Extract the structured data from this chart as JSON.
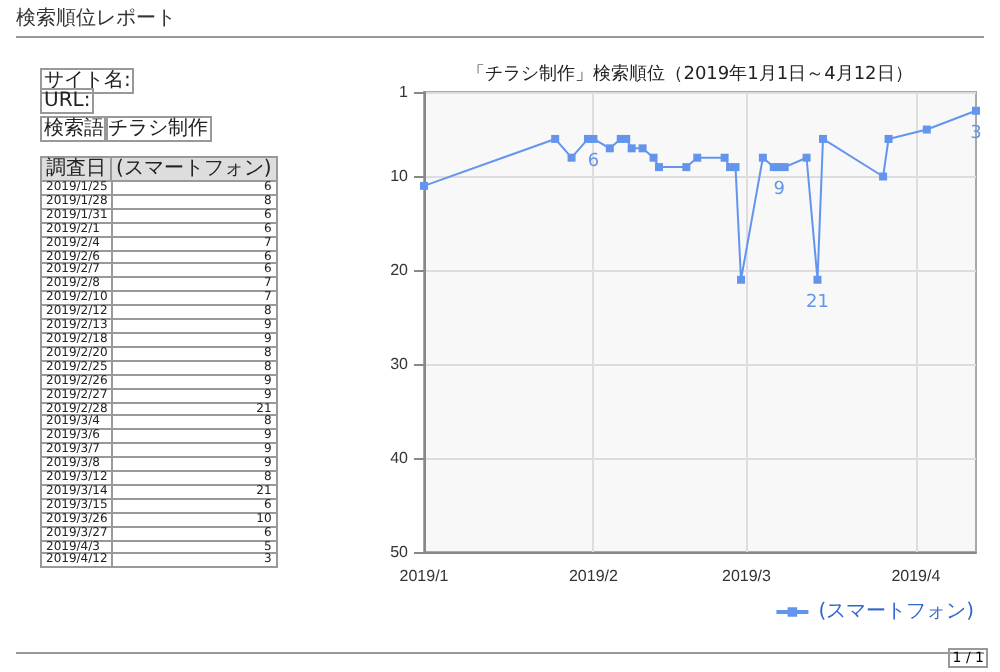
{
  "chart_data": [
    {
      "type": "other",
      "title": "検索順位レポート",
      "annotations": [
        "サイト名:",
        "URL:",
        "検索語",
        "チラシ制作",
        "調査日",
        "(スマートフォン)",
        "2019/1/25 6",
        "2019/1/28 8",
        "2019/1/31 6",
        "2019/2/1 6",
        "2019/2/4 7",
        "2019/2/6 6",
        "2019/2/7 6",
        "2019/2/8 7",
        "2019/2/10 7",
        "2019/2/12 8",
        "2019/2/13 9",
        "2019/2/18 9",
        "2019/2/20 8",
        "2019/2/25 8",
        "2019/2/26 9",
        "2019/2/27 9",
        "2019/2/28 21",
        "2019/3/4 8",
        "2019/3/6 9",
        "2019/3/7 9",
        "2019/3/8 9",
        "2019/3/12 8",
        "2019/3/14 21",
        "2019/3/15 6",
        "2019/3/26 10",
        "2019/3/27 6",
        "2019/4/3 5",
        "2019/4/12 3",
        "1 / 1"
      ]
    },
    {
      "type": "line",
      "title": "「チラシ制作」検索順位（2019年1月1日～4月12日）",
      "x": [
        "2019-01-01",
        "2019-01-25",
        "2019-01-28",
        "2019-01-31",
        "2019-02-01",
        "2019-02-04",
        "2019-02-06",
        "2019-02-07",
        "2019-02-08",
        "2019-02-10",
        "2019-02-12",
        "2019-02-13",
        "2019-02-18",
        "2019-02-20",
        "2019-02-25",
        "2019-02-26",
        "2019-02-27",
        "2019-02-28",
        "2019-03-04",
        "2019-03-06",
        "2019-03-07",
        "2019-03-08",
        "2019-03-12",
        "2019-03-14",
        "2019-03-15",
        "2019-03-26",
        "2019-03-27",
        "2019-04-03",
        "2019-04-12"
      ],
      "series": [
        {
          "name": "(スマートフォン)",
          "color": "#6495ed",
          "values": [
            11,
            6,
            8,
            6,
            6,
            7,
            6,
            6,
            7,
            7,
            8,
            9,
            9,
            8,
            8,
            9,
            9,
            21,
            8,
            9,
            9,
            9,
            8,
            21,
            6,
            10,
            6,
            5,
            3
          ],
          "value_labels": [
            null,
            null,
            null,
            null,
            "6",
            null,
            null,
            null,
            null,
            null,
            null,
            null,
            null,
            null,
            null,
            null,
            null,
            null,
            null,
            null,
            "9",
            null,
            null,
            "21",
            null,
            null,
            null,
            null,
            "3"
          ]
        }
      ],
      "xlim": [
        "2019-01-01",
        "2019-04-12"
      ],
      "xticks": [
        {
          "value": "2019-01-01",
          "label": "2019/1"
        },
        {
          "value": "2019-02-01",
          "label": "2019/2"
        },
        {
          "value": "2019-03-01",
          "label": "2019/3"
        },
        {
          "value": "2019-04-01",
          "label": "2019/4"
        }
      ],
      "ylim": [
        50,
        1
      ],
      "yticks": [
        1,
        10,
        20,
        30,
        40,
        50
      ],
      "grid": true,
      "legend": "bottom right",
      "marker": "square",
      "line_style": "solid"
    }
  ]
}
